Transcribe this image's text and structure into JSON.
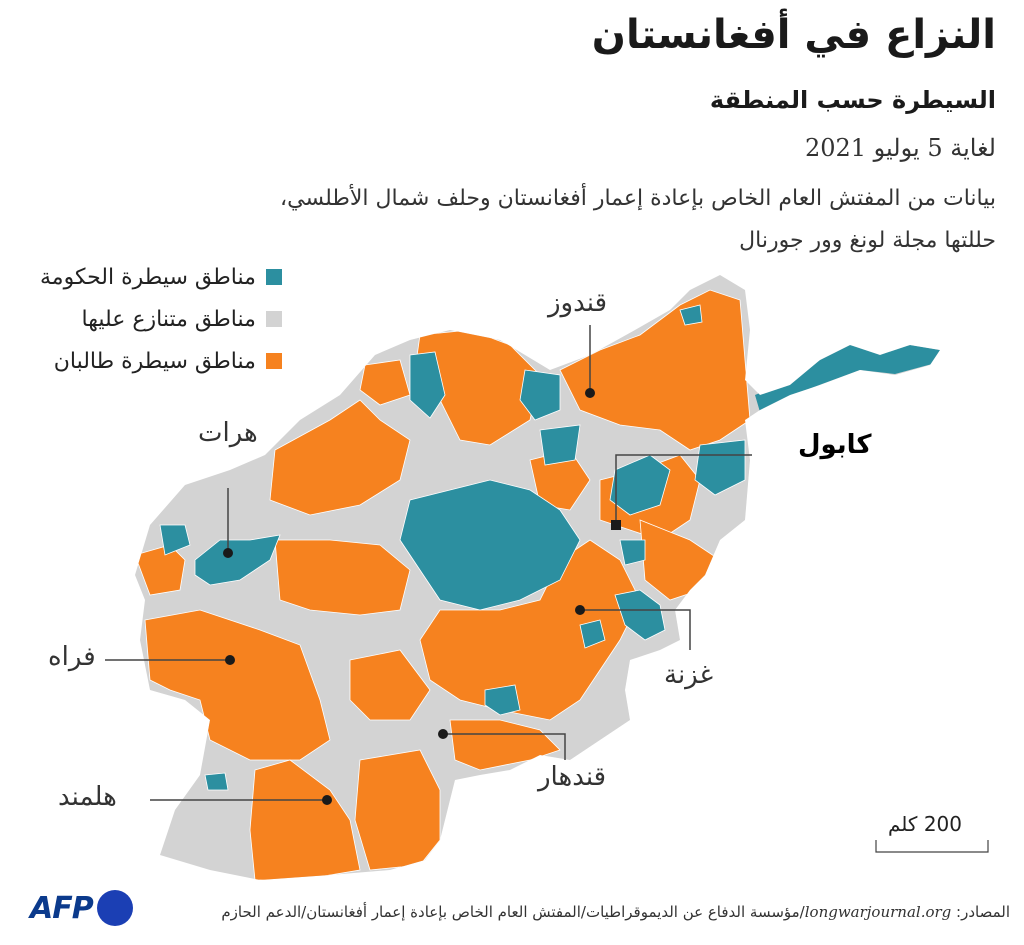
{
  "title": "النزاع في أفغانستان",
  "subtitle": "السيطرة حسب المنطقة",
  "date": "لغاية 5 يوليو 2021",
  "description_line1": "بيانات من المفتش العام الخاص بإعادة إعمار أفغانستان وحلف شمال الأطلسي،",
  "description_line2": "حللتها مجلة لونغ وور جورنال",
  "colors": {
    "government": "#2c8fa0",
    "contested": "#d3d3d3",
    "taliban": "#f6821f",
    "leader": "#444444"
  },
  "legend": [
    {
      "label": "مناطق سيطرة الحكومة",
      "color": "#2c8fa0"
    },
    {
      "label": "مناطق متنازع عليها",
      "color": "#d3d3d3"
    },
    {
      "label": "مناطق سيطرة طالبان",
      "color": "#f6821f"
    }
  ],
  "cities": {
    "kunduz": "قندوز",
    "herat": "هرات",
    "kabul": "كابول",
    "farah": "فراه",
    "ghazni": "غزنة",
    "kandahar": "قندهار",
    "helmand": "هلمند"
  },
  "scale": "200 كلم",
  "footer": {
    "prefix": "المصادر: ",
    "url": "longwarjournal.org",
    "rest": "/مؤسسة الدفاع عن الديموقراطيات/المفتش العام الخاص بإعادة إعمار أفغانستان/الدعم الحازم"
  },
  "logo_text": "AFP"
}
